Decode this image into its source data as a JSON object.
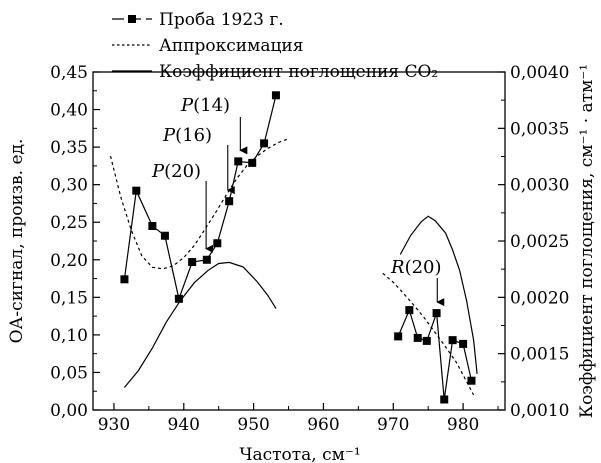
{
  "chart_data": {
    "type": "line",
    "xlabel": "Частота, см⁻¹",
    "ylabel": "ОА-сигнал, произв. ед.",
    "y2label": "Коэффициент поглощения, см⁻¹ · атм⁻¹",
    "xlim": [
      927,
      986
    ],
    "ylim": [
      0,
      0.45
    ],
    "y2lim": [
      0.001,
      0.004
    ],
    "xticks": [
      "930",
      "940",
      "950",
      "960",
      "970",
      "980"
    ],
    "yticks": [
      "0,00",
      "0,05",
      "0,10",
      "0,15",
      "0,20",
      "0,25",
      "0,30",
      "0,35",
      "0,40",
      "0,45"
    ],
    "y2ticks": [
      "0,0010",
      "0,0015",
      "0,0020",
      "0,0025",
      "0,0030",
      "0,0035",
      "0,0040"
    ],
    "legend": {
      "placement": "top-left",
      "entries": [
        {
          "label": "Проба 1923 г.",
          "style": "line-square-markers"
        },
        {
          "label": "Аппроксимация",
          "style": "dotted"
        },
        {
          "label": "Коэффициент поглощения CO₂",
          "style": "solid"
        }
      ]
    },
    "series": [
      {
        "name": "Проба 1923 г.",
        "axis": "left",
        "segments": [
          [
            [
              931.5,
              0.174
            ],
            [
              933.2,
              0.292
            ],
            [
              935.5,
              0.245
            ],
            [
              937.3,
              0.232
            ],
            [
              939.3,
              0.148
            ],
            [
              941.2,
              0.197
            ],
            [
              943.3,
              0.2
            ],
            [
              944.8,
              0.222
            ],
            [
              946.5,
              0.278
            ],
            [
              947.8,
              0.331
            ],
            [
              949.8,
              0.329
            ],
            [
              951.5,
              0.355
            ],
            [
              953.2,
              0.419
            ]
          ],
          [
            [
              970.7,
              0.098
            ],
            [
              972.3,
              0.133
            ],
            [
              973.5,
              0.096
            ],
            [
              974.8,
              0.092
            ],
            [
              976.2,
              0.129
            ],
            [
              977.3,
              0.014
            ],
            [
              978.5,
              0.093
            ],
            [
              980.0,
              0.088
            ],
            [
              981.2,
              0.039
            ]
          ]
        ]
      },
      {
        "name": "Аппроксимация",
        "axis": "left",
        "segments": [
          [
            [
              929.5,
              0.338
            ],
            [
              931.0,
              0.283
            ],
            [
              932.5,
              0.239
            ],
            [
              934.0,
              0.205
            ],
            [
              935.5,
              0.19
            ],
            [
              937.0,
              0.188
            ],
            [
              938.5,
              0.192
            ],
            [
              940.0,
              0.203
            ],
            [
              941.5,
              0.219
            ],
            [
              943.0,
              0.24
            ],
            [
              944.5,
              0.262
            ],
            [
              946.0,
              0.285
            ],
            [
              947.5,
              0.307
            ],
            [
              949.0,
              0.325
            ],
            [
              950.5,
              0.338
            ],
            [
              952.0,
              0.348
            ],
            [
              953.5,
              0.356
            ],
            [
              955.0,
              0.361
            ]
          ],
          [
            [
              968.5,
              0.182
            ],
            [
              970.0,
              0.17
            ],
            [
              971.5,
              0.155
            ],
            [
              973.0,
              0.139
            ],
            [
              974.5,
              0.122
            ],
            [
              976.0,
              0.103
            ],
            [
              977.5,
              0.084
            ],
            [
              979.0,
              0.064
            ],
            [
              980.5,
              0.038
            ],
            [
              981.5,
              0.02
            ]
          ]
        ]
      },
      {
        "name": "Коэффициент поглощения CO₂",
        "axis": "right",
        "segments": [
          [
            [
              931.5,
              0.0012
            ],
            [
              933.5,
              0.00135
            ],
            [
              935.5,
              0.00155
            ],
            [
              937.5,
              0.00178
            ],
            [
              939.5,
              0.00197
            ],
            [
              941.5,
              0.00213
            ],
            [
              943.5,
              0.00224
            ],
            [
              945.0,
              0.0023
            ],
            [
              946.5,
              0.00231
            ],
            [
              948.5,
              0.00227
            ],
            [
              950.5,
              0.00214
            ],
            [
              952.0,
              0.00202
            ],
            [
              953.2,
              0.0019
            ]
          ],
          [
            [
              971.0,
              0.00238
            ],
            [
              972.5,
              0.00255
            ],
            [
              974.0,
              0.00267
            ],
            [
              975.0,
              0.00272
            ],
            [
              976.0,
              0.00268
            ],
            [
              977.5,
              0.00257
            ],
            [
              978.5,
              0.00242
            ],
            [
              979.5,
              0.00224
            ],
            [
              980.5,
              0.00197
            ],
            [
              981.5,
              0.00162
            ],
            [
              982.0,
              0.00132
            ]
          ]
        ]
      }
    ],
    "annotations": [
      {
        "letter": "P",
        "number": "(14)",
        "arrow_x": 948.1,
        "arrow_to_y": 0.335
      },
      {
        "letter": "P",
        "number": "(16)",
        "arrow_x": 946.3,
        "arrow_to_y": 0.282
      },
      {
        "letter": "P",
        "number": "(20)",
        "arrow_x": 943.2,
        "arrow_to_y": 0.204
      },
      {
        "letter": "R",
        "number": "(20)",
        "arrow_x": 976.3,
        "arrow_to_y": 0.133
      }
    ],
    "grid": false
  }
}
